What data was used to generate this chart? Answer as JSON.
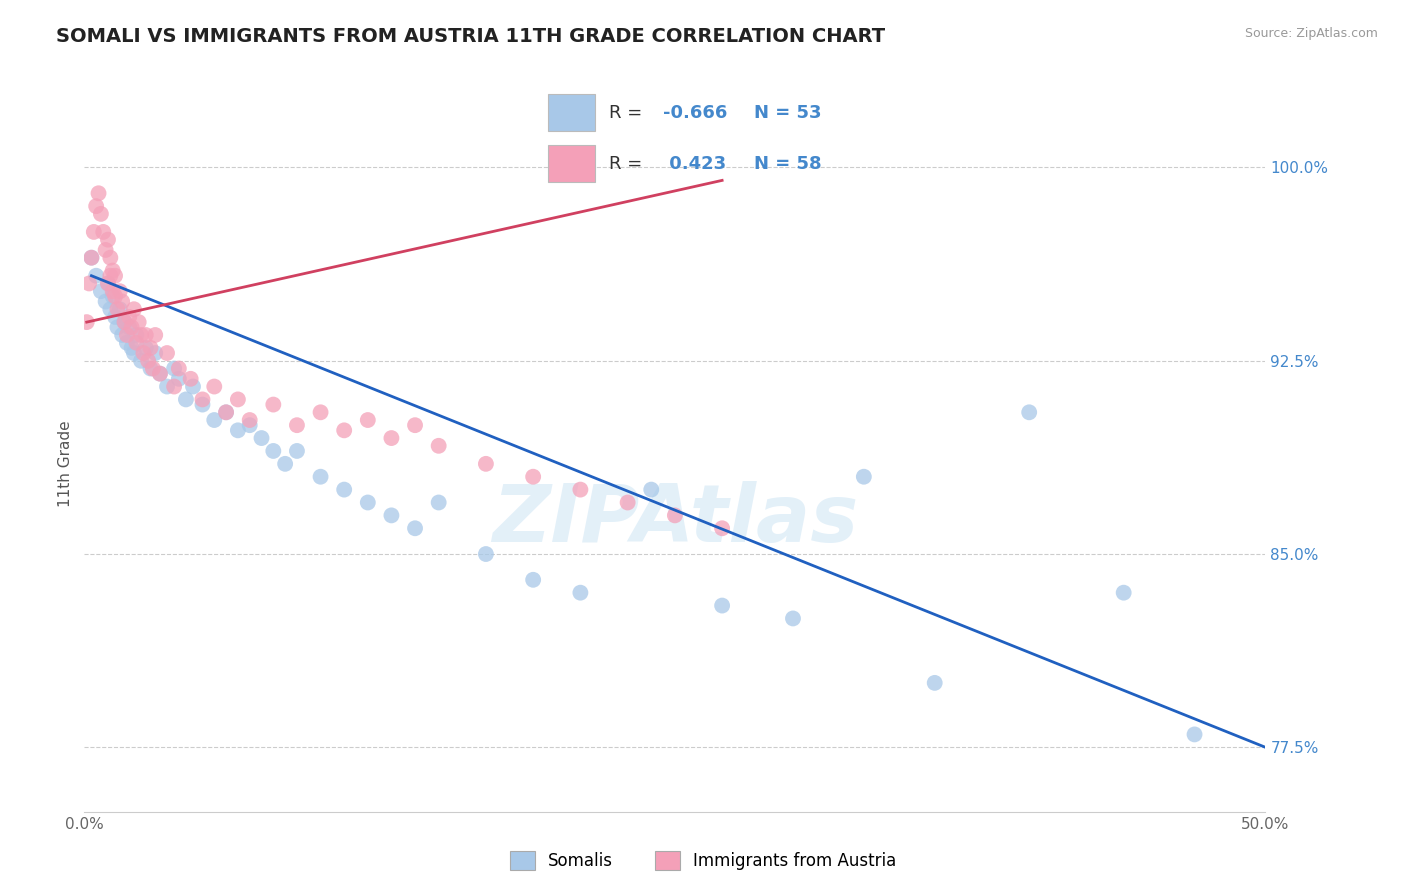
{
  "title": "SOMALI VS IMMIGRANTS FROM AUSTRIA 11TH GRADE CORRELATION CHART",
  "source_text": "Source: ZipAtlas.com",
  "ylabel": "11th Grade",
  "xlim": [
    0.0,
    50.0
  ],
  "ylim": [
    75.0,
    102.0
  ],
  "y_ticks": [
    77.5,
    85.0,
    92.5,
    100.0
  ],
  "y_tick_labels": [
    "77.5%",
    "85.0%",
    "92.5%",
    "100.0%"
  ],
  "x_tick_labels_show": [
    "0.0%",
    "50.0%"
  ],
  "blue_R": -0.666,
  "blue_N": 53,
  "pink_R": 0.423,
  "pink_N": 58,
  "blue_color": "#a8c8e8",
  "pink_color": "#f4a0b8",
  "blue_line_color": "#2060c0",
  "pink_line_color": "#d04060",
  "tick_color": "#4488cc",
  "legend_label_blue": "Somalis",
  "legend_label_pink": "Immigrants from Austria",
  "watermark": "ZIPAtlas",
  "blue_scatter_x": [
    0.3,
    0.5,
    0.7,
    0.9,
    1.0,
    1.1,
    1.2,
    1.3,
    1.4,
    1.5,
    1.6,
    1.7,
    1.8,
    1.9,
    2.0,
    2.1,
    2.2,
    2.4,
    2.6,
    2.8,
    3.0,
    3.2,
    3.5,
    3.8,
    4.0,
    4.3,
    4.6,
    5.0,
    5.5,
    6.0,
    6.5,
    7.0,
    7.5,
    8.0,
    8.5,
    9.0,
    10.0,
    11.0,
    12.0,
    13.0,
    14.0,
    15.0,
    17.0,
    19.0,
    21.0,
    24.0,
    27.0,
    30.0,
    33.0,
    36.0,
    40.0,
    44.0,
    47.0
  ],
  "blue_scatter_y": [
    96.5,
    95.8,
    95.2,
    94.8,
    95.5,
    94.5,
    95.0,
    94.2,
    93.8,
    94.5,
    93.5,
    94.0,
    93.2,
    93.8,
    93.0,
    92.8,
    93.5,
    92.5,
    93.0,
    92.2,
    92.8,
    92.0,
    91.5,
    92.2,
    91.8,
    91.0,
    91.5,
    90.8,
    90.2,
    90.5,
    89.8,
    90.0,
    89.5,
    89.0,
    88.5,
    89.0,
    88.0,
    87.5,
    87.0,
    86.5,
    86.0,
    87.0,
    85.0,
    84.0,
    83.5,
    87.5,
    83.0,
    82.5,
    88.0,
    80.0,
    90.5,
    83.5,
    78.0
  ],
  "pink_scatter_x": [
    0.1,
    0.2,
    0.3,
    0.4,
    0.5,
    0.6,
    0.7,
    0.8,
    0.9,
    1.0,
    1.0,
    1.1,
    1.1,
    1.2,
    1.2,
    1.3,
    1.3,
    1.4,
    1.5,
    1.6,
    1.7,
    1.8,
    1.9,
    2.0,
    2.1,
    2.2,
    2.3,
    2.4,
    2.5,
    2.6,
    2.7,
    2.8,
    2.9,
    3.0,
    3.2,
    3.5,
    3.8,
    4.0,
    4.5,
    5.0,
    5.5,
    6.0,
    6.5,
    7.0,
    8.0,
    9.0,
    10.0,
    11.0,
    12.0,
    13.0,
    14.0,
    15.0,
    17.0,
    19.0,
    21.0,
    23.0,
    25.0,
    27.0
  ],
  "pink_scatter_y": [
    94.0,
    95.5,
    96.5,
    97.5,
    98.5,
    99.0,
    98.2,
    97.5,
    96.8,
    95.5,
    97.2,
    96.5,
    95.8,
    96.0,
    95.2,
    95.8,
    95.0,
    94.5,
    95.2,
    94.8,
    94.0,
    93.5,
    94.2,
    93.8,
    94.5,
    93.2,
    94.0,
    93.5,
    92.8,
    93.5,
    92.5,
    93.0,
    92.2,
    93.5,
    92.0,
    92.8,
    91.5,
    92.2,
    91.8,
    91.0,
    91.5,
    90.5,
    91.0,
    90.2,
    90.8,
    90.0,
    90.5,
    89.8,
    90.2,
    89.5,
    90.0,
    89.2,
    88.5,
    88.0,
    87.5,
    87.0,
    86.5,
    86.0
  ],
  "blue_line_x0": 0.3,
  "blue_line_x1": 50.0,
  "blue_line_y0": 95.8,
  "blue_line_y1": 77.5,
  "pink_line_x0": 0.1,
  "pink_line_x1": 27.0,
  "pink_line_y0": 94.0,
  "pink_line_y1": 99.5
}
